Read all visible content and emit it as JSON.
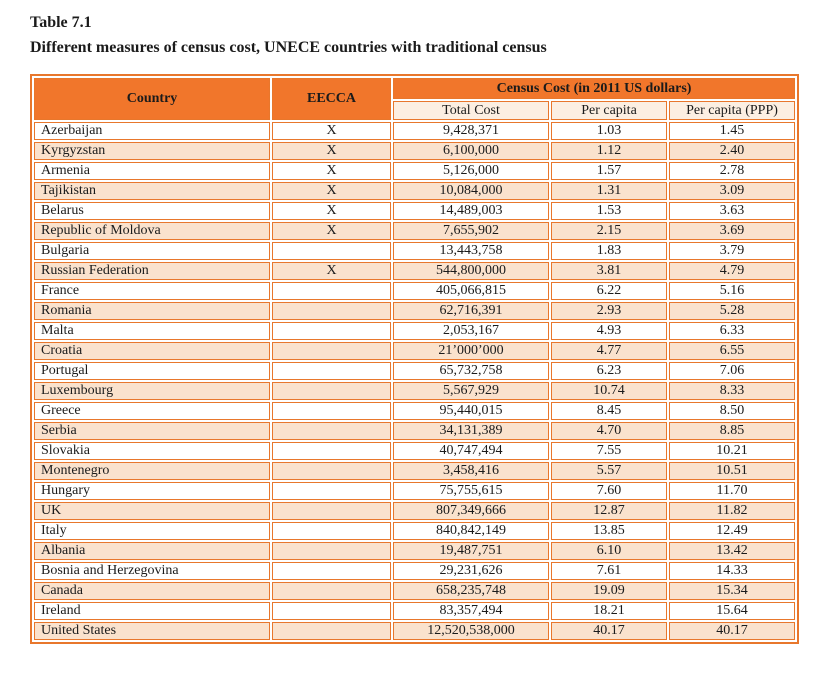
{
  "caption": {
    "label": "Table 7.1",
    "subtitle": "Different measures of census cost, UNECE countries with traditional census"
  },
  "table": {
    "header": {
      "country": "Country",
      "eecca": "EECCA",
      "census_cost_group": "Census Cost (in 2011 US dollars)",
      "sub": [
        "Total Cost",
        "Per capita",
        "Per capita (PPP)"
      ]
    },
    "rows": [
      {
        "country": "Azerbaijan",
        "eecca": "X",
        "total_cost": "9,428,371",
        "per_capita": "1.03",
        "per_capita_ppp": "1.45"
      },
      {
        "country": "Kyrgyzstan",
        "eecca": "X",
        "total_cost": "6,100,000",
        "per_capita": "1.12",
        "per_capita_ppp": "2.40"
      },
      {
        "country": "Armenia",
        "eecca": "X",
        "total_cost": "5,126,000",
        "per_capita": "1.57",
        "per_capita_ppp": "2.78"
      },
      {
        "country": "Tajikistan",
        "eecca": "X",
        "total_cost": "10,084,000",
        "per_capita": "1.31",
        "per_capita_ppp": "3.09"
      },
      {
        "country": "Belarus",
        "eecca": "X",
        "total_cost": "14,489,003",
        "per_capita": "1.53",
        "per_capita_ppp": "3.63"
      },
      {
        "country": "Republic of Moldova",
        "eecca": "X",
        "total_cost": "7,655,902",
        "per_capita": "2.15",
        "per_capita_ppp": "3.69"
      },
      {
        "country": "Bulgaria",
        "eecca": "",
        "total_cost": "13,443,758",
        "per_capita": "1.83",
        "per_capita_ppp": "3.79"
      },
      {
        "country": "Russian Federation",
        "eecca": "X",
        "total_cost": "544,800,000",
        "per_capita": "3.81",
        "per_capita_ppp": "4.79"
      },
      {
        "country": "France",
        "eecca": "",
        "total_cost": "405,066,815",
        "per_capita": "6.22",
        "per_capita_ppp": "5.16"
      },
      {
        "country": "Romania",
        "eecca": "",
        "total_cost": "62,716,391",
        "per_capita": "2.93",
        "per_capita_ppp": "5.28"
      },
      {
        "country": "Malta",
        "eecca": "",
        "total_cost": "2,053,167",
        "per_capita": "4.93",
        "per_capita_ppp": "6.33"
      },
      {
        "country": "Croatia",
        "eecca": "",
        "total_cost": "21’000’000",
        "per_capita": "4.77",
        "per_capita_ppp": "6.55"
      },
      {
        "country": "Portugal",
        "eecca": "",
        "total_cost": "65,732,758",
        "per_capita": "6.23",
        "per_capita_ppp": "7.06"
      },
      {
        "country": "Luxembourg",
        "eecca": "",
        "total_cost": "5,567,929",
        "per_capita": "10.74",
        "per_capita_ppp": "8.33"
      },
      {
        "country": "Greece",
        "eecca": "",
        "total_cost": "95,440,015",
        "per_capita": "8.45",
        "per_capita_ppp": "8.50"
      },
      {
        "country": "Serbia",
        "eecca": "",
        "total_cost": "34,131,389",
        "per_capita": "4.70",
        "per_capita_ppp": "8.85"
      },
      {
        "country": "Slovakia",
        "eecca": "",
        "total_cost": "40,747,494",
        "per_capita": "7.55",
        "per_capita_ppp": "10.21"
      },
      {
        "country": "Montenegro",
        "eecca": "",
        "total_cost": "3,458,416",
        "per_capita": "5.57",
        "per_capita_ppp": "10.51"
      },
      {
        "country": "Hungary",
        "eecca": "",
        "total_cost": "75,755,615",
        "per_capita": "7.60",
        "per_capita_ppp": "11.70"
      },
      {
        "country": "UK",
        "eecca": "",
        "total_cost": "807,349,666",
        "per_capita": "12.87",
        "per_capita_ppp": "11.82"
      },
      {
        "country": "Italy",
        "eecca": "",
        "total_cost": "840,842,149",
        "per_capita": "13.85",
        "per_capita_ppp": "12.49"
      },
      {
        "country": "Albania",
        "eecca": "",
        "total_cost": "19,487,751",
        "per_capita": "6.10",
        "per_capita_ppp": "13.42"
      },
      {
        "country": "Bosnia and Herzegovina",
        "eecca": "",
        "total_cost": "29,231,626",
        "per_capita": "7.61",
        "per_capita_ppp": "14.33"
      },
      {
        "country": "Canada",
        "eecca": "",
        "total_cost": "658,235,748",
        "per_capita": "19.09",
        "per_capita_ppp": "15.34"
      },
      {
        "country": "Ireland",
        "eecca": "",
        "total_cost": "83,357,494",
        "per_capita": "18.21",
        "per_capita_ppp": "15.64"
      },
      {
        "country": "United States",
        "eecca": "",
        "total_cost": "12,520,538,000",
        "per_capita": "40.17",
        "per_capita_ppp": "40.17"
      }
    ]
  },
  "colors": {
    "header_orange": "#f1762b",
    "border_orange": "#e8772c",
    "row_peach": "#fae2cd",
    "subheader_peach": "#fcefe2",
    "text": "#1b1b1b"
  }
}
